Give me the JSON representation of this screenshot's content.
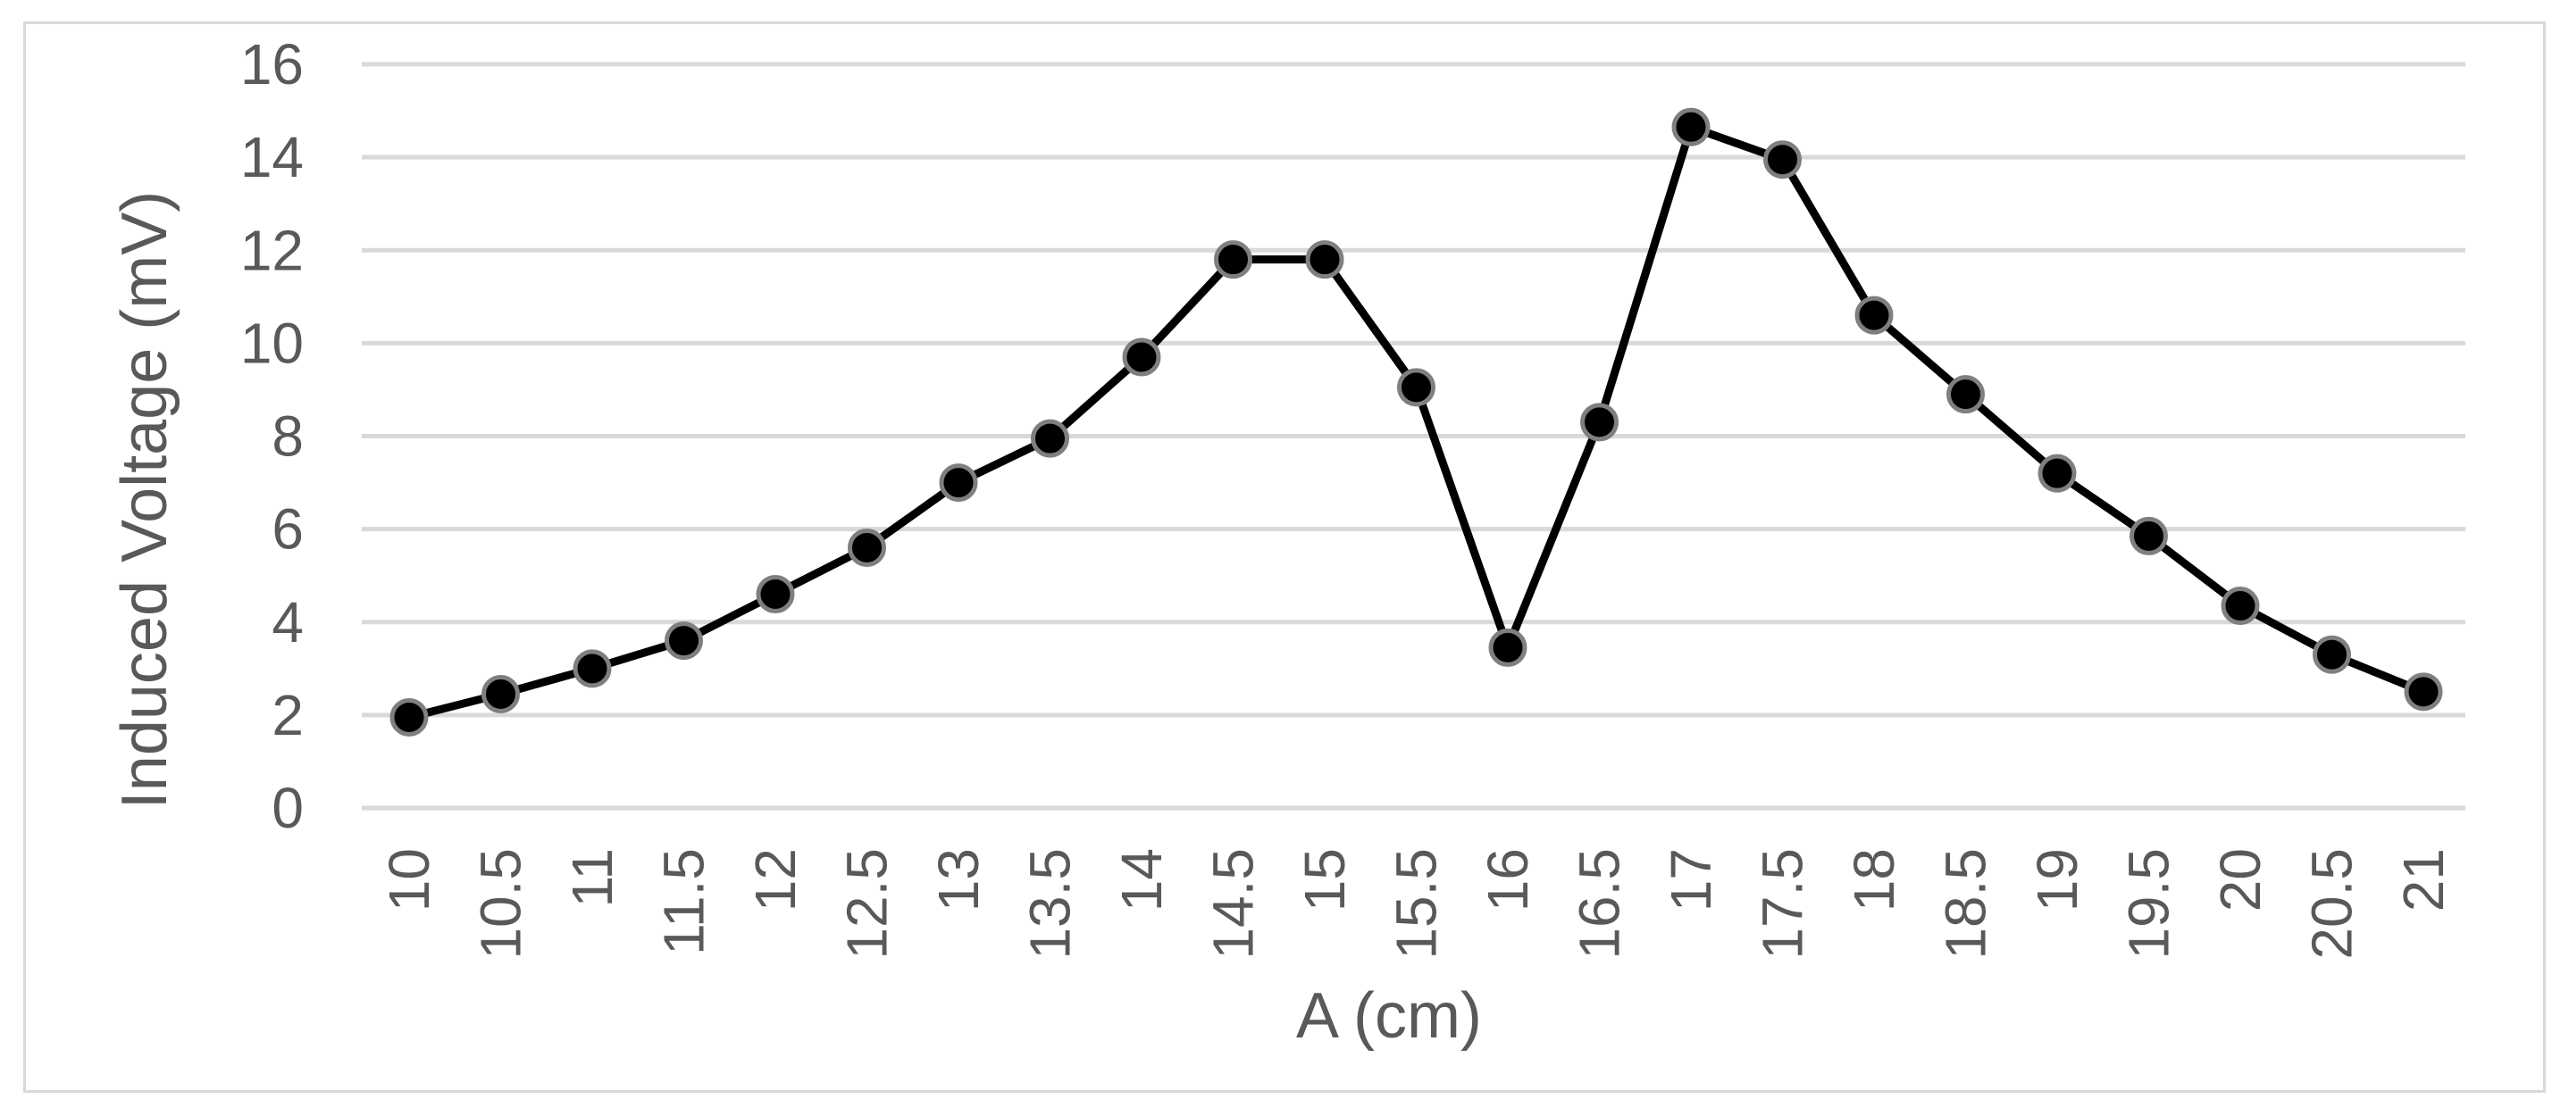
{
  "chart_data": {
    "type": "line",
    "title": "",
    "xlabel": "A (cm)",
    "ylabel": "Induced Voltage (mV)",
    "ylim": [
      0,
      16
    ],
    "yticks": [
      "0",
      "2",
      "4",
      "6",
      "8",
      "10",
      "12",
      "14",
      "16"
    ],
    "grid": true,
    "categories": [
      "10",
      "10.5",
      "11",
      "11.5",
      "12",
      "12.5",
      "13",
      "13.5",
      "14",
      "14.5",
      "15",
      "15.5",
      "16",
      "16.5",
      "17",
      "17.5",
      "18",
      "18.5",
      "19",
      "19.5",
      "20",
      "20.5",
      "21"
    ],
    "series": [
      {
        "values": [
          1.95,
          2.45,
          3.0,
          3.6,
          4.6,
          5.6,
          7.0,
          7.95,
          9.7,
          11.8,
          11.8,
          9.05,
          3.45,
          8.3,
          14.65,
          13.95,
          10.6,
          8.9,
          7.2,
          5.85,
          4.35,
          3.3,
          2.5
        ],
        "color": "#000000",
        "marker_edge": "#7f7f7f"
      }
    ],
    "gridline_color": "#d9d9d9"
  }
}
